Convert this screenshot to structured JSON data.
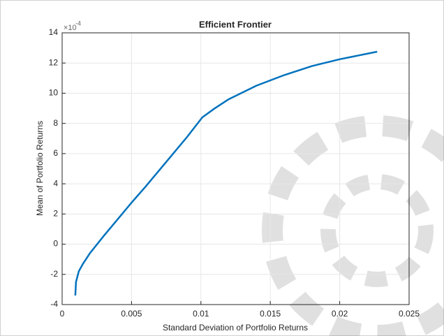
{
  "chart_data": {
    "type": "line",
    "title": "Efficient Frontier",
    "xlabel": "Standard Deviation of Portfolio Returns",
    "ylabel": "Mean of Portfolio Returns",
    "y_scale_base": "×10",
    "y_scale_exponent": "-4",
    "x": [
      0.00095,
      0.001,
      0.0012,
      0.0015,
      0.002,
      0.003,
      0.004,
      0.005,
      0.006,
      0.007,
      0.008,
      0.009,
      0.0101,
      0.011,
      0.012,
      0.014,
      0.016,
      0.018,
      0.02,
      0.0227
    ],
    "series": [
      {
        "name": "Efficient Frontier",
        "color": "#0072bd",
        "values": [
          -3.4,
          -2.5,
          -1.8,
          -1.3,
          -0.6,
          0.55,
          1.65,
          2.75,
          3.8,
          4.9,
          6.0,
          7.1,
          8.4,
          9.0,
          9.6,
          10.5,
          11.2,
          11.8,
          12.25,
          12.75
        ]
      }
    ],
    "xlim": [
      0,
      0.025
    ],
    "xticks": [
      0,
      0.005,
      0.01,
      0.015,
      0.02,
      0.025
    ],
    "ylim": [
      -4,
      14
    ],
    "yticks": [
      -4,
      -2,
      0,
      2,
      4,
      6,
      8,
      10,
      12,
      14
    ],
    "grid": true
  }
}
